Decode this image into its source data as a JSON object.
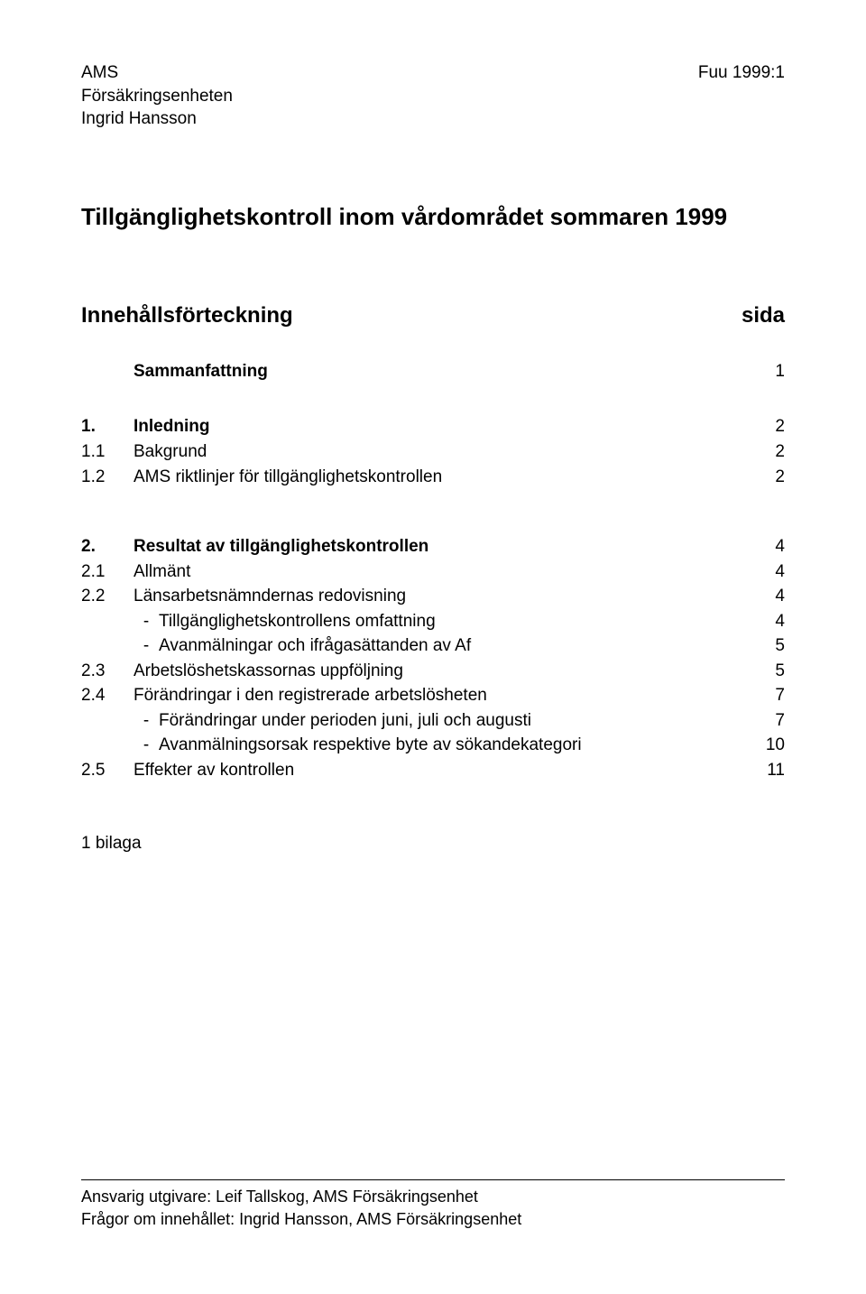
{
  "header": {
    "left": {
      "line1": "AMS",
      "line2": "Försäkringsenheten",
      "line3": "Ingrid Hansson"
    },
    "right": "Fuu 1999:1"
  },
  "title": "Tillgänglighetskontroll inom vårdområdet sommaren 1999",
  "toc_head": {
    "left": "Innehållsförteckning",
    "right": "sida"
  },
  "toc": {
    "group1": [
      {
        "num": "",
        "label": "Sammanfattning",
        "page": "1",
        "bold": true
      }
    ],
    "group2": [
      {
        "num": "1.",
        "label": "Inledning",
        "page": "2",
        "bold": true
      },
      {
        "num": "1.1",
        "label": "Bakgrund",
        "page": "2"
      },
      {
        "num": "1.2",
        "label": "AMS riktlinjer för tillgänglighetskontrollen",
        "page": "2"
      }
    ],
    "group3": [
      {
        "num": "2.",
        "label": "Resultat av tillgänglighetskontrollen",
        "page": "4",
        "bold": true
      },
      {
        "num": "2.1",
        "label": "Allmänt",
        "page": "4"
      },
      {
        "num": "2.2",
        "label": "Länsarbetsnämndernas redovisning",
        "page": "4"
      },
      {
        "num": "",
        "label": "Tillgänglighetskontrollens omfattning",
        "page": "4",
        "dash": true
      },
      {
        "num": "",
        "label": "Avanmälningar och ifrågasättanden av Af",
        "page": "5",
        "dash": true
      },
      {
        "num": "2.3",
        "label": "Arbetslöshetskassornas uppföljning",
        "page": "5"
      },
      {
        "num": "2.4",
        "label": "Förändringar i den registrerade arbetslösheten",
        "page": "7"
      },
      {
        "num": "",
        "label": "Förändringar under perioden juni, juli och augusti",
        "page": "7",
        "dash": true
      },
      {
        "num": "",
        "label": "Avanmälningsorsak respektive byte av sökandekategori",
        "page": "10",
        "dash": true
      },
      {
        "num": "2.5",
        "label": "Effekter av kontrollen",
        "page": "11"
      }
    ]
  },
  "appendix": "1 bilaga",
  "footer": {
    "line1": "Ansvarig utgivare: Leif Tallskog,  AMS Försäkringsenhet",
    "line2": "Frågor om innehållet: Ingrid Hansson,  AMS Försäkringsenhet"
  }
}
